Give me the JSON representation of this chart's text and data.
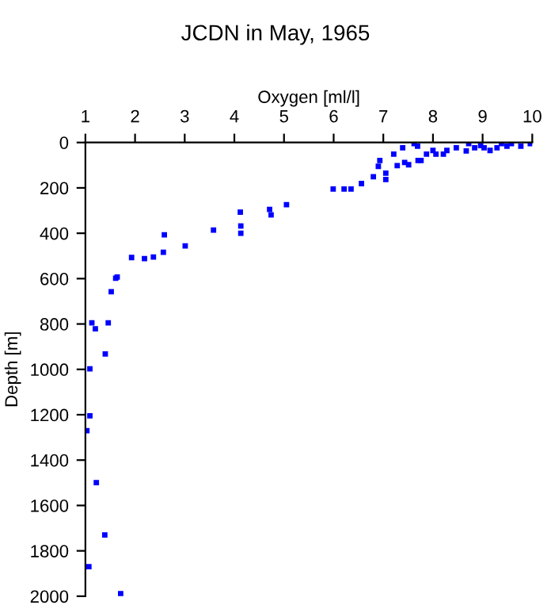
{
  "chart_data": {
    "type": "scatter",
    "title": "JCDN in May, 1965",
    "xlabel": "Oxygen [ml/l]",
    "ylabel": "Depth [m]",
    "x": [
      1.13,
      1.2,
      1.46,
      1.52,
      1.61,
      1.64,
      1.93,
      2.19,
      2.37,
      2.57,
      2.59,
      3.01,
      3.58,
      4.12,
      4.13,
      4.13,
      4.71,
      4.74,
      5.05,
      5.99,
      6.21,
      6.35,
      6.56,
      6.8,
      6.9,
      6.93,
      7.05,
      7.05,
      7.21,
      7.28,
      7.39,
      7.43,
      7.51,
      7.62,
      7.69,
      7.7,
      7.76,
      7.87,
      8.0,
      8.06,
      8.21,
      8.28,
      8.47,
      8.67,
      8.72,
      8.84,
      8.96,
      9.03,
      9.15,
      9.29,
      9.38,
      9.49,
      9.58,
      9.77,
      9.96,
      1.4,
      1.09,
      1.09,
      1.03,
      1.22,
      1.39,
      1.07,
      1.71
    ],
    "series": [
      {
        "color": "#0000ff",
        "values": [
          795,
          821,
          795,
          658,
          598,
          593,
          507,
          512,
          505,
          484,
          407,
          456,
          386,
          307,
          368,
          400,
          295,
          319,
          274,
          205,
          205,
          205,
          181,
          151,
          105,
          79,
          135,
          163,
          51,
          102,
          23,
          88,
          98,
          5,
          16,
          79,
          79,
          51,
          35,
          51,
          51,
          35,
          23,
          37,
          5,
          23,
          14,
          23,
          35,
          23,
          5,
          16,
          5,
          16,
          5,
          932,
          998,
          1205,
          1270,
          1499,
          1730,
          1870,
          1989
        ]
      }
    ],
    "xlim": [
      1,
      10
    ],
    "xticks": [
      1,
      2,
      3,
      4,
      5,
      6,
      7,
      8,
      9,
      10
    ],
    "ylim": [
      2000,
      0
    ],
    "yticks": [
      0,
      200,
      400,
      600,
      800,
      1000,
      1200,
      1400,
      1600,
      1800,
      2000
    ],
    "grid": false,
    "legend": false,
    "marker": "square"
  }
}
